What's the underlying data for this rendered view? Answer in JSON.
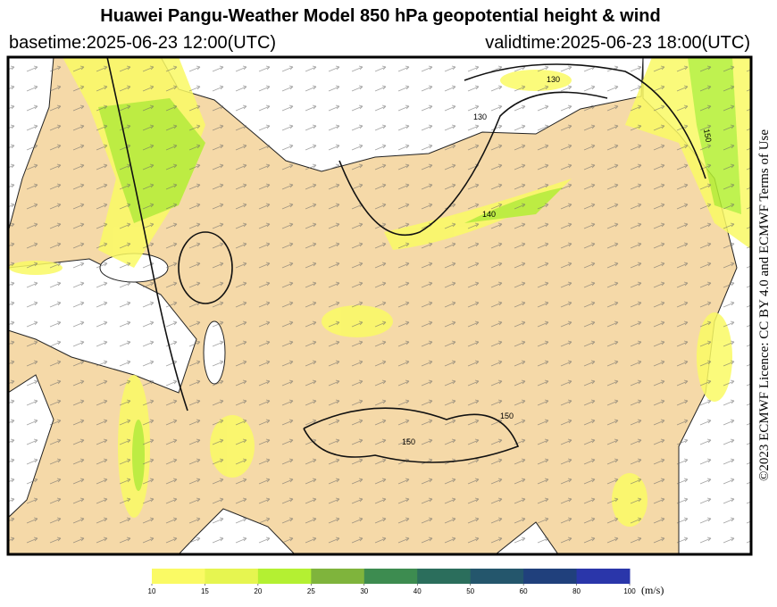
{
  "header": {
    "title": "Huawei Pangu-Weather Model 850 hPa geopotential height & wind",
    "basetime": "basetime:2025-06-23 12:00(UTC)",
    "validtime": "validtime:2025-06-23 18:00(UTC)"
  },
  "map": {
    "contour_labels": [
      "130",
      "130",
      "140",
      "150",
      "150",
      "150"
    ]
  },
  "colorbar": {
    "ticks": [
      10,
      15,
      20,
      25,
      30,
      40,
      50,
      60,
      80,
      100
    ],
    "colors": [
      "#fafa64",
      "#e6f550",
      "#b4f032",
      "#7fb43c",
      "#3d8c50",
      "#2b6e5c",
      "#24566c",
      "#20407c",
      "#2a36aa"
    ],
    "unit": "(m/s)"
  },
  "licence": "©2023 ECMWF Licence: CC BY 4.0 and ECMWF Terms of Use"
}
